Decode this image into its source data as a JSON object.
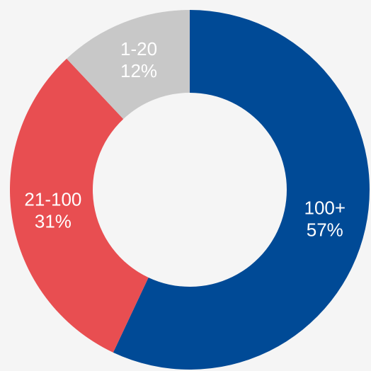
{
  "chart_data": {
    "type": "donut",
    "categories": [
      "100+",
      "21-100",
      "1-20"
    ],
    "values": [
      57,
      31,
      12
    ],
    "value_labels": [
      "57%",
      "31%",
      "12%"
    ],
    "colors": [
      "#004a96",
      "#e84e51",
      "#c8c8c8"
    ]
  }
}
